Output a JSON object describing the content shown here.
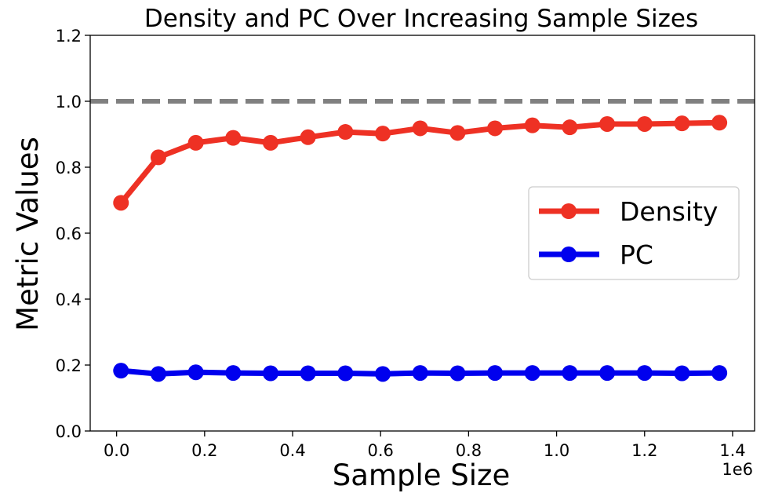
{
  "chart_data": {
    "type": "line",
    "title": "Density and PC Over Increasing Sample Sizes",
    "xlabel": "Sample Size",
    "ylabel": "Metric Values",
    "x_offset_label": "1e6",
    "xlim": [
      -0.06,
      1.45
    ],
    "ylim": [
      0.0,
      1.2
    ],
    "xticks": [
      0.0,
      0.2,
      0.4,
      0.6,
      0.8,
      1.0,
      1.2,
      1.4
    ],
    "xtick_labels": [
      "0.0",
      "0.2",
      "0.4",
      "0.6",
      "0.8",
      "1.0",
      "1.2",
      "1.4"
    ],
    "yticks": [
      0.0,
      0.2,
      0.4,
      0.6,
      0.8,
      1.0,
      1.2
    ],
    "ytick_labels": [
      "0.0",
      "0.2",
      "0.4",
      "0.6",
      "0.8",
      "1.0",
      "1.2"
    ],
    "grid": false,
    "legend_position": "center-right",
    "x": [
      0.01,
      0.095,
      0.18,
      0.265,
      0.35,
      0.435,
      0.52,
      0.605,
      0.69,
      0.775,
      0.86,
      0.945,
      1.03,
      1.115,
      1.2,
      1.285,
      1.37
    ],
    "series": [
      {
        "name": "Density",
        "color": "#ee3124",
        "values": [
          0.692,
          0.83,
          0.874,
          0.889,
          0.874,
          0.891,
          0.907,
          0.902,
          0.918,
          0.904,
          0.918,
          0.927,
          0.921,
          0.931,
          0.931,
          0.933,
          0.935
        ]
      },
      {
        "name": "PC",
        "color": "#0000ee",
        "values": [
          0.183,
          0.173,
          0.178,
          0.176,
          0.175,
          0.175,
          0.175,
          0.173,
          0.176,
          0.175,
          0.176,
          0.176,
          0.176,
          0.176,
          0.176,
          0.175,
          0.176
        ]
      }
    ],
    "reference_line": {
      "y": 1.0,
      "color": "#808080",
      "style": "dashed"
    }
  }
}
